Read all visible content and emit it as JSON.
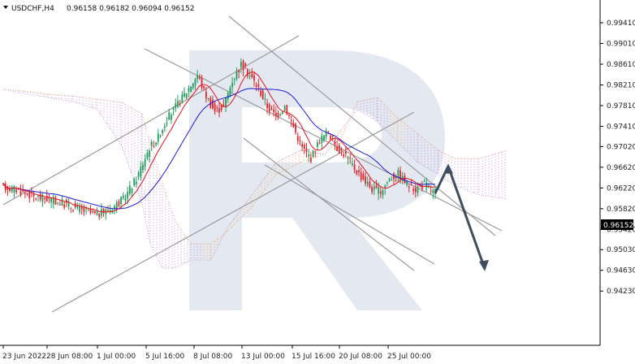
{
  "header": {
    "symbol": "USDCHF,H4",
    "quotes": "0.96158 0.96182 0.96094 0.96152"
  },
  "chart_data": {
    "type": "candlestick",
    "symbol": "USDCHF",
    "timeframe": "H4",
    "ohlc_last": {
      "open": 0.96158,
      "high": 0.96182,
      "low": 0.96094,
      "close": 0.96152
    },
    "current_price": "0.96152",
    "y_ticks": [
      "0.99410",
      "0.99010",
      "0.98610",
      "0.98210",
      "0.97810",
      "0.97410",
      "0.97020",
      "0.96620",
      "0.96220",
      "0.95820",
      "0.95420",
      "0.95030",
      "0.94630",
      "0.94230"
    ],
    "ylim": [
      0.9423,
      0.9941
    ],
    "x_ticks": [
      "23 Jun 2022",
      "28 Jun 08:00",
      "1 Jul 00:00",
      "5 Jul 16:00",
      "8 Jul 08:00",
      "13 Jul 00:00",
      "15 Jul 16:00",
      "20 Jul 08:00",
      "25 Jul 00:00"
    ],
    "grid": false,
    "indicators": [
      "Ichimoku cloud",
      "Tenkan-sen (red)",
      "Kijun-sen (blue)"
    ],
    "trendlines": "ascending channel, descending channel, descending triangle",
    "forecast": {
      "from": 0.9612,
      "to_high": 0.9664,
      "to_low": 0.9466
    },
    "colors": {
      "bull": "#1f9e5a",
      "bear": "#e0242a",
      "tenkan": "#e8101a",
      "kijun": "#1a1adc",
      "cloud_bear": "#b77fd6",
      "cloud_bull": "#f0a45a",
      "trendline": "#9a9a9a",
      "arrow": "#3f4d5e"
    }
  }
}
